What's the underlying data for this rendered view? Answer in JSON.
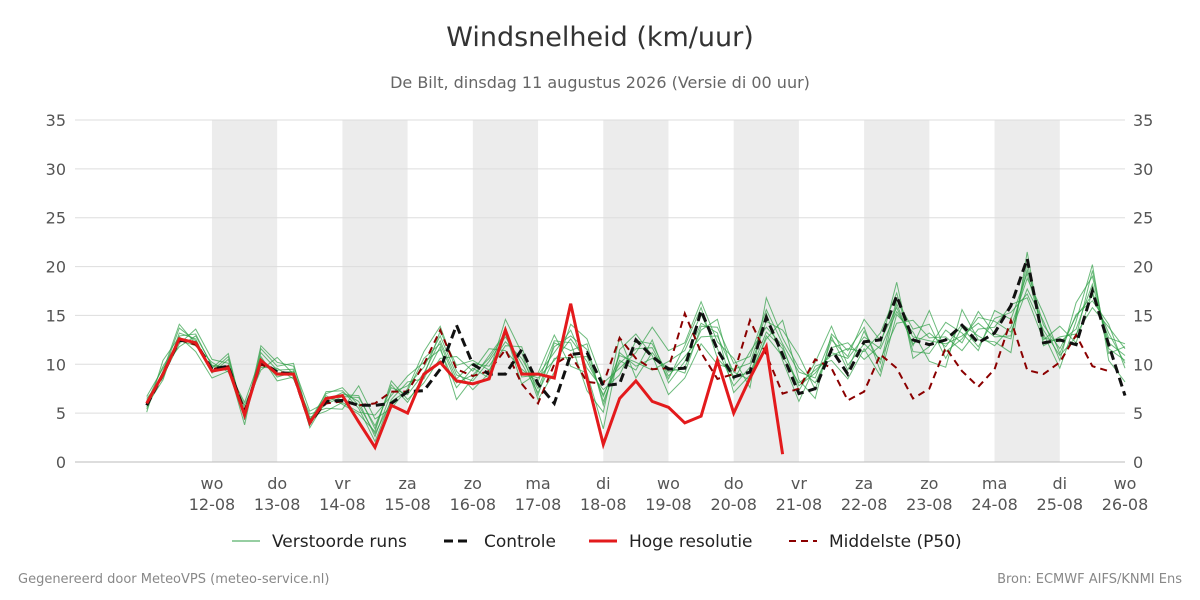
{
  "header": {
    "title": "Windsnelheid (km/uur)",
    "subtitle": "De Bilt, dinsdag 11 augustus 2026 (Versie di 00 uur)"
  },
  "footer": {
    "left": "Gegenereerd door MeteoVPS (meteo-service.nl)",
    "right": "Bron: ECMWF AIFS/KNMI Ens"
  },
  "colors": {
    "ensemble": "#2e9e44",
    "control": "#111111",
    "high_res": "#e31a1c",
    "median": "#8b0000",
    "weekend_band": "#ececec",
    "grid": "#dddddd"
  },
  "chart_data": {
    "type": "line",
    "title": "Windsnelheid (km/uur)",
    "subtitle": "De Bilt, dinsdag 11 augustus 2026 (Versie di 00 uur)",
    "x_unit": "days since 2026-08-11 00:00",
    "xlim": [
      0,
      15
    ],
    "ylim": [
      0,
      35
    ],
    "y_ticks": [
      0,
      5,
      10,
      15,
      20,
      25,
      30,
      35
    ],
    "x_ticks": [
      {
        "x": 1,
        "day": "wo",
        "date": "12-08"
      },
      {
        "x": 2,
        "day": "do",
        "date": "13-08"
      },
      {
        "x": 3,
        "day": "vr",
        "date": "14-08"
      },
      {
        "x": 4,
        "day": "za",
        "date": "15-08"
      },
      {
        "x": 5,
        "day": "zo",
        "date": "16-08"
      },
      {
        "x": 6,
        "day": "ma",
        "date": "17-08"
      },
      {
        "x": 7,
        "day": "di",
        "date": "18-08"
      },
      {
        "x": 8,
        "day": "wo",
        "date": "19-08"
      },
      {
        "x": 9,
        "day": "do",
        "date": "20-08"
      },
      {
        "x": 10,
        "day": "vr",
        "date": "21-08"
      },
      {
        "x": 11,
        "day": "za",
        "date": "22-08"
      },
      {
        "x": 12,
        "day": "zo",
        "date": "23-08"
      },
      {
        "x": 13,
        "day": "ma",
        "date": "24-08"
      },
      {
        "x": 14,
        "day": "di",
        "date": "25-08"
      },
      {
        "x": 15,
        "day": "wo",
        "date": "26-08"
      }
    ],
    "shaded_bands": [
      [
        1,
        2
      ],
      [
        3,
        4
      ],
      [
        5,
        6
      ],
      [
        7,
        8
      ],
      [
        9,
        10
      ],
      [
        11,
        12
      ],
      [
        13,
        14
      ]
    ],
    "grid": true,
    "legend_position": "bottom",
    "legend": [
      "Verstoorde runs",
      "Controle",
      "Hoge resolutie",
      "Middelste (P50)"
    ],
    "series": [
      {
        "name": "Controle",
        "style": "dashed",
        "step": 0.25,
        "values": [
          5.8,
          9,
          12.5,
          12.2,
          9.5,
          9.8,
          5,
          10.3,
          9.2,
          9,
          4,
          6.2,
          6.3,
          5.8,
          5.8,
          6,
          7.2,
          7.3,
          9.5,
          14,
          10,
          9,
          9,
          11.5,
          8,
          6,
          11,
          11.2,
          7.8,
          8,
          12.5,
          10.8,
          9.5,
          9.6,
          15.5,
          11.5,
          8.7,
          9.2,
          14.8,
          11,
          7,
          7.5,
          11.5,
          9,
          12.3,
          12.5,
          17,
          12.5,
          12,
          12.5,
          14,
          12.2,
          13.2,
          16,
          20.8,
          12.2,
          12.5,
          12,
          17.5,
          12,
          6.8
        ]
      },
      {
        "name": "Hoge resolutie",
        "style": "solid",
        "step": 0.25,
        "values": [
          6,
          9,
          12.6,
          12.2,
          9.3,
          9.6,
          4.8,
          10.4,
          9,
          9,
          4,
          6.5,
          6.8,
          4.1,
          1.5,
          5.8,
          5,
          9,
          10.2,
          8.3,
          8,
          8.5,
          13.5,
          9,
          9,
          8.6,
          16.2,
          8.5,
          1.8,
          6.5,
          8.3,
          6.2,
          5.6,
          4,
          4.7,
          10.4,
          5,
          8.6,
          11.8,
          0.8
        ]
      },
      {
        "name": "Middelste (P50)",
        "style": "dashed",
        "step": 0.25,
        "values": [
          6,
          9,
          12.5,
          12,
          9.5,
          9.8,
          5.3,
          10,
          9.2,
          9,
          4.2,
          6,
          6.2,
          5.8,
          6,
          7.2,
          7.2,
          10,
          13.5,
          9.5,
          8.8,
          9.3,
          11.5,
          8,
          6,
          10,
          11,
          8.2,
          8,
          12.7,
          10.6,
          9.5,
          9.6,
          15.2,
          11.2,
          8.5,
          9,
          14.5,
          11,
          7,
          7.5,
          10.5,
          9.6,
          6.3,
          7.2,
          11,
          9.6,
          6.5,
          7.5,
          11.7,
          9.3,
          7.7,
          9.5,
          14.5,
          9.4,
          9,
          10.2,
          13,
          9.8,
          9.3
        ]
      },
      {
        "name": "Verstoorde runs",
        "style": "thin",
        "step": 0.25,
        "members": [
          [
            5.4,
            9.1,
            13.7,
            12.4,
            9.3,
            10.8,
            4.6,
            11.2,
            9.4,
            9.5,
            4.4,
            5.9,
            6.7,
            6.6,
            3.7,
            7.6,
            6.9,
            9.1,
            12.4,
            8.5,
            10.1,
            9.8,
            12.3,
            10.6,
            7.5,
            11.8,
            12.9,
            11.5,
            6.2,
            10.4,
            9.4,
            12.5,
            8.1,
            10.3,
            14.2,
            13.2,
            7.1,
            8.9,
            12.6,
            14.5,
            8.4,
            6.5,
            13.1,
            11.4,
            13.8,
            9.3,
            16.2,
            11.9,
            15.5,
            11.3,
            12.6,
            14.8,
            14.4,
            13.3,
            17.7,
            14.4,
            10.4,
            16.3,
            19,
            11.6,
            10.4
          ],
          [
            6.3,
            8.8,
            12.1,
            13.6,
            10.5,
            10.1,
            5.5,
            9.4,
            10.7,
            9,
            3.8,
            7.2,
            7.3,
            5.5,
            2.1,
            6.4,
            8.2,
            8.5,
            11.8,
            6.4,
            8.6,
            10.9,
            13.2,
            8,
            9.1,
            13,
            9.8,
            9.1,
            3.4,
            11.5,
            13.1,
            10.9,
            6.9,
            8.6,
            12.1,
            10,
            9.5,
            10.1,
            15.2,
            10.4,
            6.2,
            9.8,
            10.4,
            8.5,
            11.6,
            8.8,
            15.1,
            13.3,
            10.3,
            9.7,
            15.6,
            12.5,
            12.3,
            11.2,
            21.5,
            11.9,
            12.8,
            13.1,
            15.8,
            13.8,
            11.6
          ],
          [
            5.1,
            10.4,
            12.8,
            11.3,
            8.6,
            9.3,
            6.1,
            10.8,
            8.3,
            8.7,
            4.9,
            5.5,
            5.4,
            7.8,
            4.4,
            5.5,
            7.5,
            11.3,
            13.9,
            9.3,
            7.4,
            9.1,
            14.6,
            11.2,
            6.4,
            9.2,
            14.1,
            12.6,
            8.1,
            9.6,
            11.2,
            13.8,
            11.4,
            12.2,
            16.4,
            12.3,
            10.6,
            7.6,
            16.8,
            12.7,
            9.6,
            8.1,
            11.7,
            12.2,
            10.5,
            11.9,
            18.4,
            10.6,
            11.8,
            14.3,
            13.2,
            11.4,
            15.5,
            14.6,
            19.3,
            13.1,
            9.6,
            14.4,
            20.2,
            10.4,
            8.2
          ],
          [
            6.7,
            9.6,
            11.8,
            12.9,
            9.9,
            9.7,
            3.8,
            11.6,
            9.8,
            10.1,
            4.1,
            6.8,
            5.9,
            4.9,
            3.1,
            8.3,
            6.4,
            8.1,
            10.6,
            10.8,
            9.3,
            11.6,
            11.4,
            9.5,
            8.2,
            12.4,
            12.2,
            7.3,
            5.1,
            12.8,
            8.6,
            11.2,
            9.2,
            9.7,
            13.5,
            14.6,
            8.4,
            11.3,
            13.8,
            11.9,
            7.3,
            10.2,
            13.9,
            9.9,
            12.1,
            10.5,
            14.2,
            14.5,
            12.7,
            12.8,
            11.4,
            13.6,
            13.8,
            16.1,
            16.8,
            12.5,
            13.9,
            12.2,
            17.4,
            12.7,
            12.1
          ],
          [
            5.8,
            8.4,
            13.2,
            12.6,
            9.1,
            10.5,
            4.9,
            10.1,
            9.1,
            9.3,
            3.5,
            6.3,
            7.1,
            6.2,
            2.6,
            7.1,
            7.8,
            9.7,
            12.9,
            8.9,
            8.3,
            10.3,
            12.8,
            10.1,
            7.1,
            10.6,
            10.7,
            10.8,
            6.7,
            10.9,
            10.2,
            9.4,
            10.3,
            11.4,
            15.1,
            11.6,
            7.8,
            9.7,
            14.4,
            13.5,
            10.9,
            7.4,
            12.5,
            10.8,
            14.6,
            12.4,
            15.8,
            12.1,
            13.2,
            11.8,
            14.1,
            12.9,
            11.9,
            13.8,
            18.8,
            15.2,
            11.1,
            15.1,
            16.5,
            14.1,
            9.6
          ],
          [
            6.1,
            9.8,
            12.4,
            11.9,
            10.2,
            9.2,
            5.8,
            9.7,
            9.6,
            8.5,
            4.6,
            5.2,
            6.1,
            5.1,
            4.8,
            6.8,
            8.8,
            10.2,
            11.5,
            7.6,
            9.6,
            8.6,
            13.8,
            8.7,
            8.9,
            11.2,
            13.5,
            9.6,
            7.4,
            8.9,
            12.4,
            12.1,
            8.8,
            10.8,
            12.8,
            12.9,
            9.2,
            8.4,
            12.9,
            10.8,
            8.1,
            9.4,
            10.9,
            11.6,
            11.3,
            13.2,
            17.3,
            11.3,
            11.1,
            13.5,
            12.2,
            15.4,
            13.1,
            12.6,
            20.4,
            12.7,
            12.3,
            13.6,
            18.2,
            12.2,
            10.9
          ],
          [
            5.6,
            9.3,
            14.1,
            12.1,
            9.6,
            11.1,
            4.3,
            11.9,
            10.2,
            9.8,
            5.2,
            6.1,
            6.9,
            6.8,
            3.4,
            7.9,
            6.1,
            8.8,
            13.4,
            9.9,
            10.4,
            9.4,
            11.9,
            11.8,
            6.8,
            12.2,
            11.4,
            12.1,
            5.8,
            11.2,
            9.8,
            10.6,
            9.7,
            9.1,
            13.9,
            13.8,
            10.1,
            10.8,
            15.6,
            12.1,
            9.2,
            8.6,
            12.8,
            9.4,
            13.4,
            10.1,
            16.6,
            13.6,
            14.1,
            10.6,
            13.8,
            11.8,
            14.7,
            15.3,
            17.2,
            13.5,
            10.9,
            12.8,
            19.6,
            11.1,
            11.8
          ],
          [
            6.5,
            8.6,
            12.9,
            13.1,
            9.8,
            9.5,
            5.2,
            10.6,
            8.7,
            9.2,
            4.3,
            7,
            7.6,
            5.8,
            2.9,
            6.2,
            7.3,
            10.6,
            12.1,
            8.1,
            8.9,
            10.6,
            13.1,
            9.2,
            8.6,
            10.4,
            12.6,
            10.3,
            6.9,
            10.1,
            11.6,
            11.7,
            8.5,
            11.9,
            15.8,
            10.6,
            8.8,
            9.1,
            13.3,
            11.6,
            7.8,
            9.1,
            11.2,
            10.6,
            12.8,
            11.6,
            15.4,
            12.8,
            12.4,
            12.1,
            12.9,
            14.2,
            12.8,
            12.9,
            19.7,
            14,
            11.6,
            14.9,
            17.1,
            13.2,
            10.1
          ]
        ]
      }
    ]
  }
}
